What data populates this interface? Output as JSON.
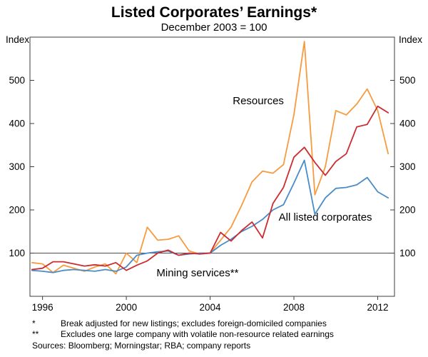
{
  "chart_data": {
    "type": "line",
    "title": "Listed Corporates’ Earnings*",
    "subtitle": "December 2003 = 100",
    "y_unit": "Index",
    "xlim": [
      1995.4,
      2012.8
    ],
    "ylim": [
      0,
      600
    ],
    "y_ticks": [
      100,
      200,
      300,
      400,
      500
    ],
    "x_ticks": [
      1996,
      2000,
      2004,
      2008,
      2012
    ],
    "reference_line": 100,
    "grid": false,
    "legend": "inline-labels",
    "x": [
      1995.5,
      1996,
      1996.5,
      1997,
      1997.5,
      1998,
      1998.5,
      1999,
      1999.5,
      2000,
      2000.5,
      2001,
      2001.5,
      2002,
      2002.5,
      2003,
      2003.5,
      2004,
      2004.5,
      2005,
      2005.5,
      2006,
      2006.5,
      2007,
      2007.5,
      2008,
      2008.5,
      2009,
      2009.5,
      2010,
      2010.5,
      2011,
      2011.5,
      2012,
      2012.5
    ],
    "series": [
      {
        "name": "Resources",
        "color": "#F79B3F",
        "label": {
          "x": 2006.3,
          "y": 445
        },
        "values": [
          78,
          75,
          55,
          72,
          65,
          58,
          68,
          75,
          52,
          100,
          78,
          160,
          130,
          132,
          140,
          105,
          98,
          100,
          130,
          160,
          210,
          265,
          290,
          285,
          305,
          420,
          590,
          235,
          300,
          430,
          420,
          445,
          480,
          430,
          330
        ]
      },
      {
        "name": "All listed corporates",
        "color": "#4A8CC7",
        "label": {
          "x": 2009.5,
          "y": 175
        },
        "values": [
          60,
          58,
          55,
          60,
          62,
          60,
          58,
          62,
          58,
          68,
          95,
          100,
          103,
          105,
          95,
          98,
          100,
          100,
          118,
          132,
          150,
          162,
          178,
          200,
          212,
          262,
          315,
          190,
          228,
          250,
          252,
          258,
          275,
          242,
          228
        ]
      },
      {
        "name": "Mining services**",
        "color": "#CB2C30",
        "label": {
          "x": 2003.4,
          "y": 46
        },
        "values": [
          62,
          65,
          80,
          80,
          75,
          70,
          73,
          70,
          78,
          60,
          72,
          82,
          100,
          107,
          95,
          100,
          98,
          100,
          148,
          128,
          152,
          172,
          135,
          215,
          252,
          322,
          345,
          310,
          280,
          312,
          330,
          392,
          398,
          440,
          425
        ]
      }
    ]
  },
  "footnotes": [
    {
      "marker": "*",
      "text": "Break adjusted for new listings; excludes foreign-domiciled companies"
    },
    {
      "marker": "**",
      "text": "Excludes one large company with volatile non-resource related earnings"
    }
  ],
  "sources": "Sources: Bloomberg; Morningstar; RBA; company reports"
}
